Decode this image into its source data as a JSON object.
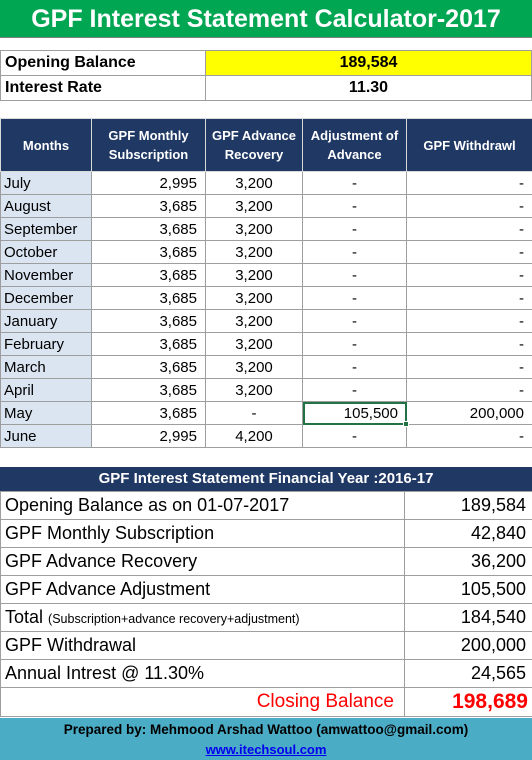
{
  "title": "GPF Interest Statement Calculator-2017",
  "info": {
    "opening_balance_label": "Opening Balance",
    "opening_balance_value": "189,584",
    "interest_rate_label": "Interest Rate",
    "interest_rate_value": "11.30"
  },
  "monthly": {
    "headers": [
      "Months",
      "GPF Monthly Subscription",
      "GPF Advance Recovery",
      "Adjustment of Advance",
      "GPF Withdrawl"
    ],
    "rows": [
      {
        "month": "July",
        "subscription": "2,995",
        "recovery": "3,200",
        "adjustment": "-",
        "withdrawal": "-"
      },
      {
        "month": "August",
        "subscription": "3,685",
        "recovery": "3,200",
        "adjustment": "-",
        "withdrawal": "-"
      },
      {
        "month": "September",
        "subscription": "3,685",
        "recovery": "3,200",
        "adjustment": "-",
        "withdrawal": "-"
      },
      {
        "month": "October",
        "subscription": "3,685",
        "recovery": "3,200",
        "adjustment": "-",
        "withdrawal": "-"
      },
      {
        "month": "November",
        "subscription": "3,685",
        "recovery": "3,200",
        "adjustment": "-",
        "withdrawal": "-"
      },
      {
        "month": "December",
        "subscription": "3,685",
        "recovery": "3,200",
        "adjustment": "-",
        "withdrawal": "-"
      },
      {
        "month": "January",
        "subscription": "3,685",
        "recovery": "3,200",
        "adjustment": "-",
        "withdrawal": "-"
      },
      {
        "month": "February",
        "subscription": "3,685",
        "recovery": "3,200",
        "adjustment": "-",
        "withdrawal": "-"
      },
      {
        "month": "March",
        "subscription": "3,685",
        "recovery": "3,200",
        "adjustment": "-",
        "withdrawal": "-"
      },
      {
        "month": "April",
        "subscription": "3,685",
        "recovery": "3,200",
        "adjustment": "-",
        "withdrawal": "-"
      },
      {
        "month": "May",
        "subscription": "3,685",
        "recovery": "-",
        "adjustment": "105,500",
        "withdrawal": "200,000"
      },
      {
        "month": "June",
        "subscription": "2,995",
        "recovery": "4,200",
        "adjustment": "-",
        "withdrawal": "-"
      }
    ]
  },
  "statement": {
    "heading": "GPF Interest Statement Financial Year :2016-17",
    "opening_label": "Opening Balance as on 01-07-2017",
    "opening_value": "189,584",
    "subscription_label": "GPF Monthly Subscription",
    "subscription_value": "42,840",
    "recovery_label": "GPF Advance Recovery",
    "recovery_value": "36,200",
    "adjustment_label": "GPF Advance Adjustment",
    "adjustment_value": "105,500",
    "total_label": "Total",
    "total_note": "(Subscription+advance recovery+adjustment)",
    "total_value": "184,540",
    "withdrawal_label": "GPF Withdrawal",
    "withdrawal_value": "200,000",
    "interest_label": "Annual Intrest @ 11.30%",
    "interest_value": "24,565",
    "closing_label": "Closing Balance",
    "closing_value": "198,689"
  },
  "footer": {
    "prepared_by": "Prepared by: Mehmood Arshad Wattoo (amwattoo@gmail.com)",
    "website": "www.itechsoul.com"
  },
  "colors": {
    "title_bg": "#00a651",
    "header_bg": "#1f3864",
    "month_bg": "#dbe5f1",
    "highlight": "#ffff00",
    "closing": "#ff0000",
    "footer_bg": "#4bacc6"
  }
}
